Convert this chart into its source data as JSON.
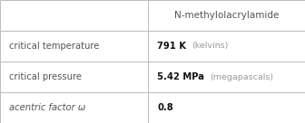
{
  "col_header": "N-methylolacrylamide",
  "rows": [
    {
      "label": "critical temperature",
      "label_italic": false,
      "value_bold": "791 K",
      "value_unit": "(kelvins)"
    },
    {
      "label": "critical pressure",
      "label_italic": false,
      "value_bold": "5.42 MPa",
      "value_unit": "(megapascals)"
    },
    {
      "label": "acentric factor ω",
      "label_italic": true,
      "value_bold": "0.8",
      "value_unit": ""
    }
  ],
  "background_color": "#ffffff",
  "border_color": "#bbbbbb",
  "header_text_color": "#555555",
  "label_text_color": "#555555",
  "value_bold_color": "#111111",
  "value_unit_color": "#999999",
  "col_split": 0.485,
  "fig_width": 3.36,
  "fig_height": 1.36,
  "dpi": 100
}
